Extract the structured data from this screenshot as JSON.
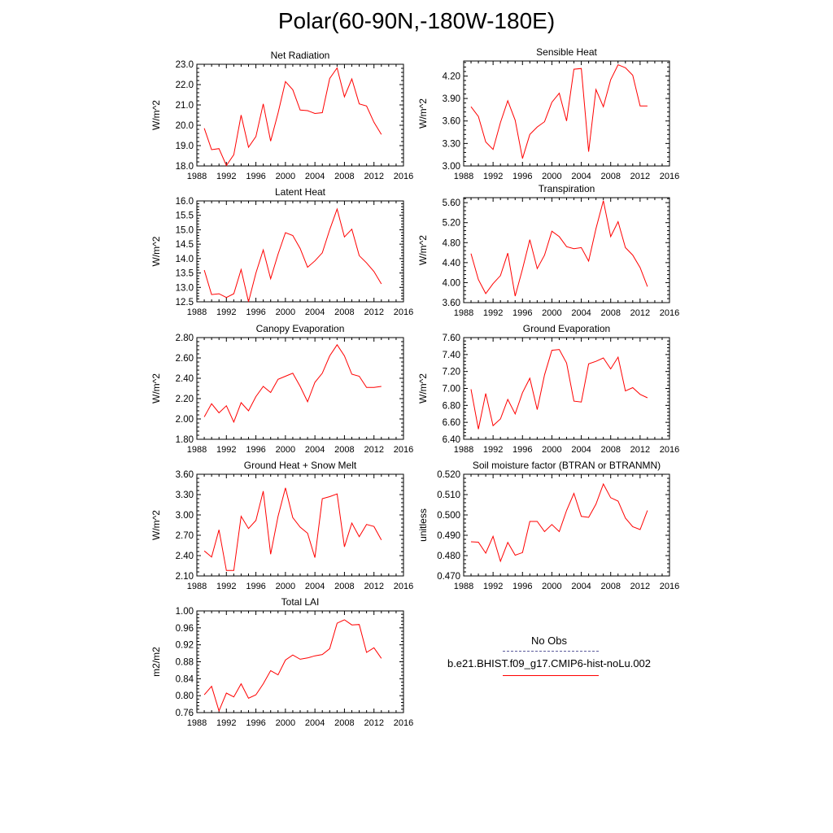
{
  "page": {
    "title": "Polar(60-90N,-180W-180E)"
  },
  "colors": {
    "model": "#ff0000",
    "obs": "#5a5a9a",
    "axis": "#000000"
  },
  "legend": {
    "obs_label": "No Obs",
    "model_label": "b.e21.BHIST.f09_g17.CMIP6-hist-noLu.002"
  },
  "chart_data": [
    {
      "type": "line",
      "title": "Net Radiation",
      "ylabel": "W/m^2",
      "xlim": [
        1988,
        2016
      ],
      "ylim": [
        18.0,
        23.0
      ],
      "xticks": [
        1988,
        1992,
        1996,
        2000,
        2004,
        2008,
        2012,
        2016
      ],
      "yticks": [
        18.0,
        19.0,
        20.0,
        21.0,
        22.0,
        23.0
      ],
      "ydec": 1,
      "x": [
        1989,
        1990,
        1991,
        1992,
        1993,
        1994,
        1995,
        1996,
        1997,
        1998,
        1999,
        2000,
        2001,
        2002,
        2003,
        2004,
        2005,
        2006,
        2007,
        2008,
        2009,
        2010,
        2011,
        2012,
        2013
      ],
      "series": [
        {
          "values": [
            19.85,
            18.8,
            18.85,
            18.02,
            18.55,
            20.5,
            18.92,
            19.45,
            21.05,
            19.22,
            20.6,
            22.15,
            21.75,
            20.75,
            20.72,
            20.58,
            20.62,
            22.3,
            22.82,
            21.4,
            22.28,
            21.05,
            20.95,
            20.15,
            19.55
          ]
        }
      ]
    },
    {
      "type": "line",
      "title": "Sensible Heat",
      "ylabel": "W/m^2",
      "xlim": [
        1988,
        2016
      ],
      "ylim": [
        3.0,
        4.4
      ],
      "xticks": [
        1988,
        1992,
        1996,
        2000,
        2004,
        2008,
        2012,
        2016
      ],
      "yticks": [
        3.0,
        3.3,
        3.6,
        3.9,
        4.2
      ],
      "ydec": 2,
      "x": [
        1989,
        1990,
        1991,
        1992,
        1993,
        1994,
        1995,
        1996,
        1997,
        1998,
        1999,
        2000,
        2001,
        2002,
        2003,
        2004,
        2005,
        2006,
        2007,
        2008,
        2009,
        2010,
        2011,
        2012,
        2013
      ],
      "series": [
        {
          "values": [
            3.79,
            3.66,
            3.32,
            3.22,
            3.58,
            3.87,
            3.61,
            3.1,
            3.42,
            3.52,
            3.59,
            3.85,
            3.97,
            3.6,
            4.29,
            4.3,
            3.19,
            4.02,
            3.79,
            4.15,
            4.35,
            4.31,
            4.21,
            3.8,
            3.8
          ]
        }
      ]
    },
    {
      "type": "line",
      "title": "Latent Heat",
      "ylabel": "W/m^2",
      "xlim": [
        1988,
        2016
      ],
      "ylim": [
        12.5,
        16.0
      ],
      "xticks": [
        1988,
        1992,
        1996,
        2000,
        2004,
        2008,
        2012,
        2016
      ],
      "yticks": [
        12.5,
        13.0,
        13.5,
        14.0,
        14.5,
        15.0,
        15.5,
        16.0
      ],
      "ydec": 1,
      "x": [
        1989,
        1990,
        1991,
        1992,
        1993,
        1994,
        1995,
        1996,
        1997,
        1998,
        1999,
        2000,
        2001,
        2002,
        2003,
        2004,
        2005,
        2006,
        2007,
        2008,
        2009,
        2010,
        2011,
        2012,
        2013
      ],
      "series": [
        {
          "values": [
            13.6,
            12.75,
            12.78,
            12.65,
            12.78,
            13.62,
            12.5,
            13.5,
            14.3,
            13.3,
            14.15,
            14.9,
            14.8,
            14.35,
            13.7,
            13.92,
            14.2,
            15.0,
            15.72,
            14.75,
            15.02,
            14.1,
            13.85,
            13.55,
            13.12
          ]
        }
      ]
    },
    {
      "type": "line",
      "title": "Transpiration",
      "ylabel": "W/m^2",
      "xlim": [
        1988,
        2016
      ],
      "ylim": [
        3.6,
        5.7
      ],
      "xticks": [
        1988,
        1992,
        1996,
        2000,
        2004,
        2008,
        2012,
        2016
      ],
      "yticks": [
        3.6,
        4.0,
        4.4,
        4.8,
        5.2,
        5.6
      ],
      "ydec": 2,
      "x": [
        1989,
        1990,
        1991,
        1992,
        1993,
        1994,
        1995,
        1996,
        1997,
        1998,
        1999,
        2000,
        2001,
        2002,
        2003,
        2004,
        2005,
        2006,
        2007,
        2008,
        2009,
        2010,
        2011,
        2012,
        2013
      ],
      "series": [
        {
          "values": [
            4.58,
            4.06,
            3.78,
            3.98,
            4.14,
            4.59,
            3.73,
            4.27,
            4.86,
            4.28,
            4.55,
            5.03,
            4.92,
            4.72,
            4.68,
            4.7,
            4.43,
            5.08,
            5.64,
            4.92,
            5.22,
            4.7,
            4.55,
            4.3,
            3.92
          ]
        }
      ]
    },
    {
      "type": "line",
      "title": "Canopy Evaporation",
      "ylabel": "W/m^2",
      "xlim": [
        1988,
        2016
      ],
      "ylim": [
        1.8,
        2.8
      ],
      "xticks": [
        1988,
        1992,
        1996,
        2000,
        2004,
        2008,
        2012,
        2016
      ],
      "yticks": [
        1.8,
        2.0,
        2.2,
        2.4,
        2.6,
        2.8
      ],
      "ydec": 2,
      "x": [
        1989,
        1990,
        1991,
        1992,
        1993,
        1994,
        1995,
        1996,
        1997,
        1998,
        1999,
        2000,
        2001,
        2002,
        2003,
        2004,
        2005,
        2006,
        2007,
        2008,
        2009,
        2010,
        2011,
        2012,
        2013
      ],
      "series": [
        {
          "values": [
            2.02,
            2.15,
            2.06,
            2.13,
            1.97,
            2.16,
            2.08,
            2.22,
            2.32,
            2.26,
            2.39,
            2.42,
            2.45,
            2.32,
            2.17,
            2.36,
            2.45,
            2.62,
            2.73,
            2.62,
            2.44,
            2.42,
            2.31,
            2.31,
            2.32
          ]
        }
      ]
    },
    {
      "type": "line",
      "title": "Ground Evaporation",
      "ylabel": "W/m^2",
      "xlim": [
        1988,
        2016
      ],
      "ylim": [
        6.4,
        7.6
      ],
      "xticks": [
        1988,
        1992,
        1996,
        2000,
        2004,
        2008,
        2012,
        2016
      ],
      "yticks": [
        6.4,
        6.6,
        6.8,
        7.0,
        7.2,
        7.4,
        7.6
      ],
      "ydec": 2,
      "x": [
        1989,
        1990,
        1991,
        1992,
        1993,
        1994,
        1995,
        1996,
        1997,
        1998,
        1999,
        2000,
        2001,
        2002,
        2003,
        2004,
        2005,
        2006,
        2007,
        2008,
        2009,
        2010,
        2011,
        2012,
        2013
      ],
      "series": [
        {
          "values": [
            6.99,
            6.52,
            6.94,
            6.56,
            6.64,
            6.87,
            6.7,
            6.95,
            7.12,
            6.75,
            7.16,
            7.45,
            7.46,
            7.3,
            6.85,
            6.84,
            7.29,
            7.32,
            7.36,
            7.23,
            7.37,
            6.97,
            7.01,
            6.93,
            6.89
          ]
        }
      ]
    },
    {
      "type": "line",
      "title": "Ground Heat + Snow Melt",
      "ylabel": "W/m^2",
      "xlim": [
        1988,
        2016
      ],
      "ylim": [
        2.1,
        3.6
      ],
      "xticks": [
        1988,
        1992,
        1996,
        2000,
        2004,
        2008,
        2012,
        2016
      ],
      "yticks": [
        2.1,
        2.4,
        2.7,
        3.0,
        3.3,
        3.6
      ],
      "ydec": 2,
      "x": [
        1989,
        1990,
        1991,
        1992,
        1993,
        1994,
        1995,
        1996,
        1997,
        1998,
        1999,
        2000,
        2001,
        2002,
        2003,
        2004,
        2005,
        2006,
        2007,
        2008,
        2009,
        2010,
        2011,
        2012,
        2013
      ],
      "series": [
        {
          "values": [
            2.47,
            2.38,
            2.78,
            2.18,
            2.18,
            2.98,
            2.8,
            2.92,
            3.35,
            2.42,
            2.98,
            3.4,
            2.96,
            2.82,
            2.73,
            2.37,
            3.24,
            3.27,
            3.31,
            2.53,
            2.88,
            2.68,
            2.86,
            2.83,
            2.63
          ]
        }
      ]
    },
    {
      "type": "line",
      "title": "Soil moisture factor (BTRAN or BTRANMN)",
      "ylabel": "unitless",
      "xlim": [
        1988,
        2016
      ],
      "ylim": [
        0.47,
        0.52
      ],
      "xticks": [
        1988,
        1992,
        1996,
        2000,
        2004,
        2008,
        2012,
        2016
      ],
      "yticks": [
        0.47,
        0.48,
        0.49,
        0.5,
        0.51,
        0.52
      ],
      "ydec": 3,
      "x": [
        1989,
        1990,
        1991,
        1992,
        1993,
        1994,
        1995,
        1996,
        1997,
        1998,
        1999,
        2000,
        2001,
        2002,
        2003,
        2004,
        2005,
        2006,
        2007,
        2008,
        2009,
        2010,
        2011,
        2012,
        2013
      ],
      "series": [
        {
          "values": [
            0.4868,
            0.4866,
            0.4812,
            0.4895,
            0.4772,
            0.4865,
            0.4802,
            0.4815,
            0.4968,
            0.4968,
            0.4918,
            0.4953,
            0.4918,
            0.5022,
            0.5106,
            0.4993,
            0.4988,
            0.5053,
            0.5152,
            0.5085,
            0.5068,
            0.4985,
            0.4942,
            0.4928,
            0.5022
          ]
        }
      ]
    },
    {
      "type": "line",
      "title": "Total LAI",
      "ylabel": "m2/m2",
      "xlim": [
        1988,
        2016
      ],
      "ylim": [
        0.76,
        1.0
      ],
      "xticks": [
        1988,
        1992,
        1996,
        2000,
        2004,
        2008,
        2012,
        2016
      ],
      "yticks": [
        0.76,
        0.8,
        0.84,
        0.88,
        0.92,
        0.96,
        1.0
      ],
      "ydec": 2,
      "x": [
        1989,
        1990,
        1991,
        1992,
        1993,
        1994,
        1995,
        1996,
        1997,
        1998,
        1999,
        2000,
        2001,
        2002,
        2003,
        2004,
        2005,
        2006,
        2007,
        2008,
        2009,
        2010,
        2011,
        2012,
        2013
      ],
      "series": [
        {
          "values": [
            0.802,
            0.822,
            0.764,
            0.806,
            0.797,
            0.828,
            0.794,
            0.802,
            0.828,
            0.859,
            0.849,
            0.884,
            0.896,
            0.886,
            0.889,
            0.894,
            0.897,
            0.911,
            0.971,
            0.979,
            0.967,
            0.968,
            0.902,
            0.913,
            0.888
          ]
        }
      ]
    }
  ]
}
